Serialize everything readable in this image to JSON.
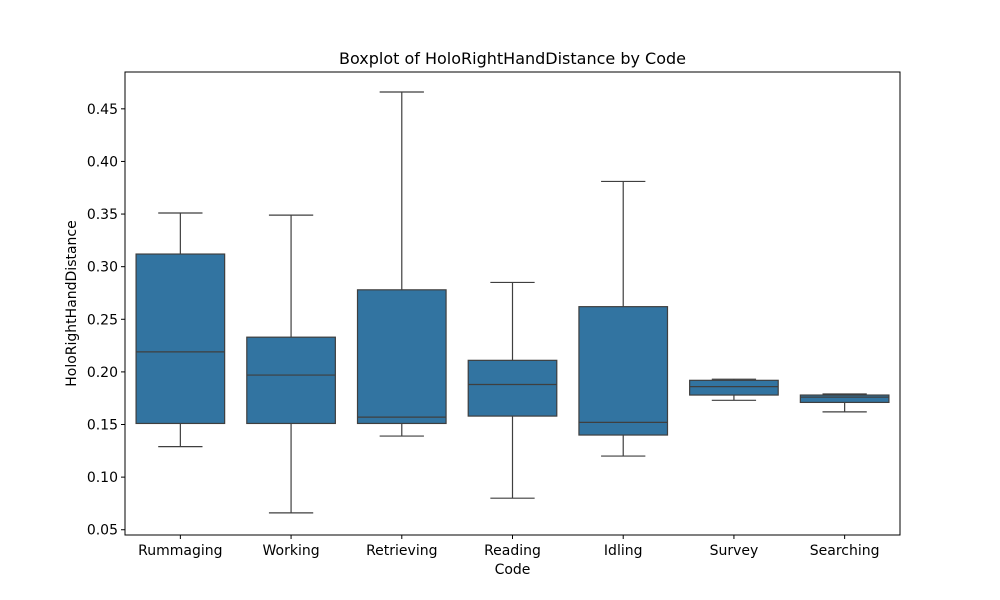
{
  "chart_data": {
    "type": "box",
    "title": "Boxplot of HoloRightHandDistance by Code",
    "xlabel": "Code",
    "ylabel": "HoloRightHandDistance",
    "ylim": [
      0.045,
      0.485
    ],
    "yticks": [
      0.05,
      0.1,
      0.15,
      0.2,
      0.25,
      0.3,
      0.35,
      0.4,
      0.45
    ],
    "ytick_labels": [
      "0.05",
      "0.10",
      "0.15",
      "0.20",
      "0.25",
      "0.30",
      "0.35",
      "0.40",
      "0.45"
    ],
    "categories": [
      "Rummaging",
      "Working",
      "Retrieving",
      "Reading",
      "Idling",
      "Survey",
      "Searching"
    ],
    "box_color": "#3274a1",
    "line_color": "#3f3f3f",
    "grid": false,
    "legend": "none",
    "boxes": [
      {
        "category": "Rummaging",
        "whisker_low": 0.129,
        "q1": 0.151,
        "median": 0.219,
        "q3": 0.312,
        "whisker_high": 0.351
      },
      {
        "category": "Working",
        "whisker_low": 0.066,
        "q1": 0.151,
        "median": 0.197,
        "q3": 0.233,
        "whisker_high": 0.349
      },
      {
        "category": "Retrieving",
        "whisker_low": 0.139,
        "q1": 0.151,
        "median": 0.157,
        "q3": 0.278,
        "whisker_high": 0.466
      },
      {
        "category": "Reading",
        "whisker_low": 0.08,
        "q1": 0.158,
        "median": 0.188,
        "q3": 0.211,
        "whisker_high": 0.285
      },
      {
        "category": "Idling",
        "whisker_low": 0.12,
        "q1": 0.14,
        "median": 0.152,
        "q3": 0.262,
        "whisker_high": 0.381
      },
      {
        "category": "Survey",
        "whisker_low": 0.173,
        "q1": 0.178,
        "median": 0.186,
        "q3": 0.192,
        "whisker_high": 0.193
      },
      {
        "category": "Searching",
        "whisker_low": 0.162,
        "q1": 0.171,
        "median": 0.176,
        "q3": 0.178,
        "whisker_high": 0.179
      }
    ]
  }
}
